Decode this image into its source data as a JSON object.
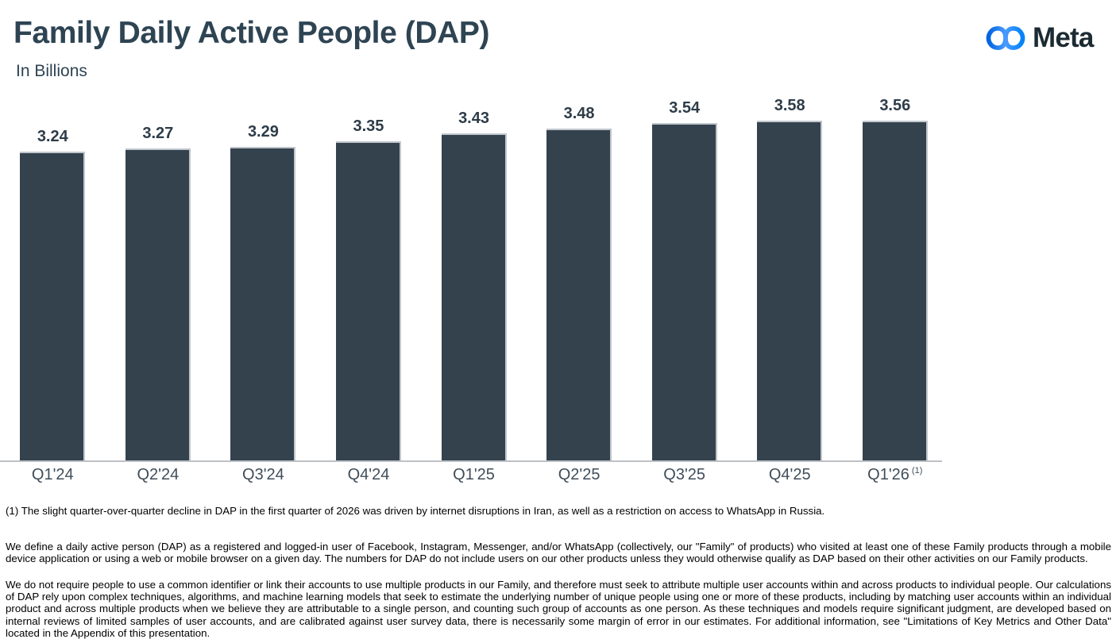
{
  "header": {
    "title": "Family Daily Active People (DAP)",
    "subtitle": "In Billions",
    "brand": "Meta"
  },
  "chart_data": {
    "type": "bar",
    "title": "Family Daily Active People (DAP)",
    "units_label": "In Billions",
    "categories": [
      "Q1'24",
      "Q2'24",
      "Q3'24",
      "Q4'24",
      "Q1'25",
      "Q2'25",
      "Q3'25",
      "Q4'25",
      "Q1'26"
    ],
    "values": [
      3.24,
      3.27,
      3.29,
      3.35,
      3.43,
      3.48,
      3.54,
      3.58,
      3.56
    ],
    "value_labels": [
      "3.24",
      "3.27",
      "3.29",
      "3.35",
      "3.43",
      "3.48",
      "3.54",
      "3.58",
      "3.56"
    ],
    "last_category_marker": "(1)",
    "xlabel": "",
    "ylabel": "In Billions",
    "ylim": [
      0,
      3.75
    ],
    "grid": false,
    "legend": "none",
    "data_labels": true,
    "bar_color": "#34424E"
  },
  "footnotes": {
    "note1": "(1) The slight quarter-over-quarter decline in DAP in the first quarter of 2026 was driven by internet disruptions in Iran, as well as a restriction on access to WhatsApp in Russia.",
    "definition": "We define a daily active person (DAP) as a registered and logged-in user of Facebook, Instagram, Messenger, and/or WhatsApp (collectively, our \"Family\" of products) who visited at least one of these Family products through a mobile device application or using a web or mobile browser on a given day. The numbers for DAP do not include users on our other products unless they would otherwise qualify as DAP based on their other activities on our Family products.",
    "methodology": "We do not require people to use a common identifier or link their accounts to use multiple products in our Family, and therefore must seek to attribute multiple user accounts within and across products to individual people. Our calculations of DAP rely upon complex techniques, algorithms, and machine learning models that seek to estimate the underlying number of unique people using one or more of these products, including by matching user accounts within an individual product and across multiple products when we believe they are attributable to a single person, and counting such group of accounts as one person. As these techniques and models require significant judgment, are developed based on internal reviews of limited samples of user accounts, and are calibrated against user survey data, there is necessarily some margin of error in our estimates. For additional information, see \"Limitations of Key Metrics and Other Data\" located in the Appendix of this presentation."
  },
  "colors": {
    "bar": "#34424E",
    "title_text": "#2E4453",
    "axis_line": "#BDC1C5",
    "logo_blue_start": "#0064E0",
    "logo_blue_end": "#0082FB",
    "logo_text": "#1C2B33"
  }
}
